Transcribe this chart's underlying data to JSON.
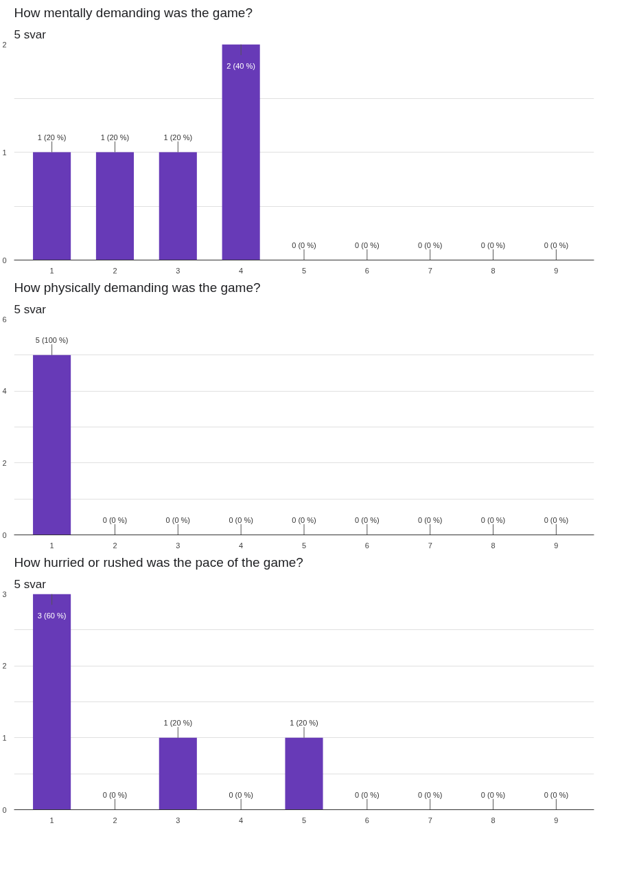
{
  "chart_data": [
    {
      "type": "bar",
      "title": "How mentally demanding was the game?",
      "subtitle": "5 svar",
      "categories": [
        "1",
        "2",
        "3",
        "4",
        "5",
        "6",
        "7",
        "8",
        "9"
      ],
      "values": [
        1,
        1,
        1,
        2,
        0,
        0,
        0,
        0,
        0
      ],
      "color": "#673ab7",
      "ylim": [
        0,
        2
      ],
      "yticks": [
        0,
        {
          "value": 0.5,
          "label": null
        },
        1,
        {
          "value": 1.5,
          "label": null
        },
        2
      ],
      "grid": "y",
      "value_labels": [
        "1 (20 %)",
        "1 (20 %)",
        "1 (20 %)",
        "2 (40 %)",
        "0 (0 %)",
        "0 (0 %)",
        "0 (0 %)",
        "0 (0 %)",
        "0 (0 %)"
      ]
    },
    {
      "type": "bar",
      "title": "How physically demanding was the game?",
      "subtitle": "5 svar",
      "categories": [
        "1",
        "2",
        "3",
        "4",
        "5",
        "6",
        "7",
        "8",
        "9"
      ],
      "values": [
        5,
        0,
        0,
        0,
        0,
        0,
        0,
        0,
        0
      ],
      "color": "#673ab7",
      "ylim": [
        0,
        6
      ],
      "yticks": [
        0,
        {
          "value": 1,
          "label": null
        },
        2,
        {
          "value": 3,
          "label": null
        },
        4,
        {
          "value": 5,
          "label": null
        },
        6
      ],
      "grid": "y",
      "value_labels": [
        "5 (100 %)",
        "0 (0 %)",
        "0 (0 %)",
        "0 (0 %)",
        "0 (0 %)",
        "0 (0 %)",
        "0 (0 %)",
        "0 (0 %)",
        "0 (0 %)"
      ]
    },
    {
      "type": "bar",
      "title": "How hurried or rushed was the pace of the game?",
      "subtitle": "5 svar",
      "categories": [
        "1",
        "2",
        "3",
        "4",
        "5",
        "6",
        "7",
        "8",
        "9"
      ],
      "values": [
        3,
        0,
        1,
        0,
        1,
        0,
        0,
        0,
        0
      ],
      "color": "#673ab7",
      "ylim": [
        0,
        3
      ],
      "yticks": [
        0,
        {
          "value": 0.5,
          "label": null
        },
        1,
        {
          "value": 1.5,
          "label": null
        },
        2,
        {
          "value": 2.5,
          "label": null
        },
        3
      ],
      "grid": "y",
      "value_labels": [
        "3 (60 %)",
        "0 (0 %)",
        "1 (20 %)",
        "0 (0 %)",
        "1 (20 %)",
        "0 (0 %)",
        "0 (0 %)",
        "0 (0 %)",
        "0 (0 %)"
      ]
    }
  ]
}
